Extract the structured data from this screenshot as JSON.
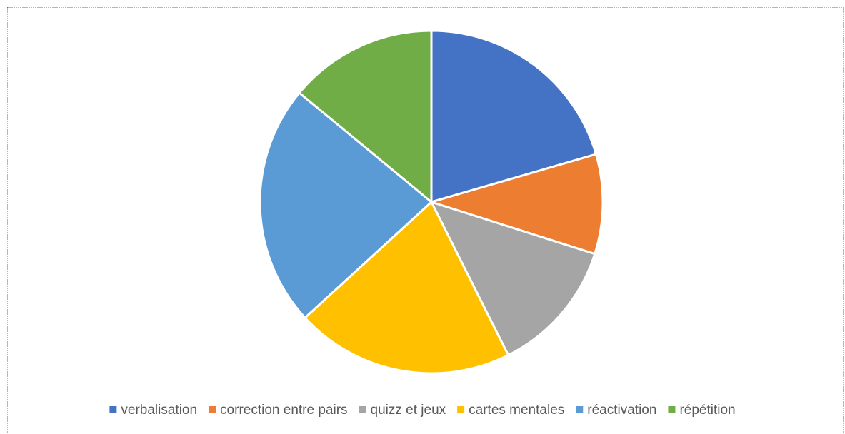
{
  "chart_data": {
    "type": "pie",
    "categories": [
      "verbalisation",
      "correction entre pairs",
      "quizz et jeux",
      "cartes mentales",
      "réactivation",
      "répétition"
    ],
    "values": [
      20.5,
      9.4,
      12.7,
      20.6,
      22.8,
      14.0
    ],
    "colors": [
      "#4472c4",
      "#ed7d31",
      "#a5a5a5",
      "#ffc000",
      "#5b9bd5",
      "#70ad47"
    ],
    "legend": "bottom"
  }
}
